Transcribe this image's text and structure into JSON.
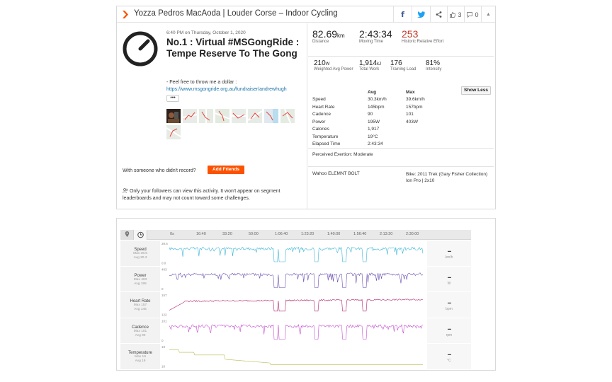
{
  "header": {
    "title": "Yozza Pedros MacAoda | Louder Corse – Indoor Cycling",
    "kudos_count": "3",
    "comment_count": "0",
    "colors": {
      "brand": "#fc5200",
      "facebook": "#3b5998",
      "twitter": "#1da1f2"
    }
  },
  "activity": {
    "date": "6:40 PM on Thursday, October 1, 2020",
    "title": "No.1 : Virtual #MSGongRide : Tempe Reserve To The Gong",
    "description_line1": "- Feel free to throw me a dollar :",
    "description_link": "https://www.msgongride.org.au/fundraiser/andrewhugh",
    "more_label": "•••",
    "friends_prompt": "With someone who didn't record?",
    "add_friends_label": "Add Friends",
    "privacy_note": "Only your followers can view this activity. It won't appear on segment leaderboards and may not count toward some challenges."
  },
  "summary": {
    "primary": [
      {
        "value": "82.69",
        "unit": "km",
        "label": "Distance"
      },
      {
        "value": "2:43:34",
        "unit": "",
        "label": "Moving Time"
      },
      {
        "value": "253",
        "unit": "",
        "label": "Historic Relative Effort"
      }
    ],
    "secondary": [
      {
        "value": "210",
        "unit": "W",
        "label": "Weighted Avg Power"
      },
      {
        "value": "1,914",
        "unit": "kJ",
        "label": "Total Work"
      },
      {
        "value": "176",
        "unit": "",
        "label": "Training Load"
      },
      {
        "value": "81%",
        "unit": "",
        "label": "Intensity"
      }
    ]
  },
  "details": {
    "show_less_label": "Show Less",
    "headers": [
      "",
      "Avg",
      "Max"
    ],
    "rows": [
      [
        "Speed",
        "30.3km/h",
        "39.6km/h"
      ],
      [
        "Heart Rate",
        "145bpm",
        "157bpm"
      ],
      [
        "Cadence",
        "90",
        "101"
      ],
      [
        "Power",
        "195W",
        "403W"
      ],
      [
        "Calories",
        "1,917",
        ""
      ],
      [
        "Temperature",
        "19°C",
        ""
      ],
      [
        "Elapsed Time",
        "2:43:34",
        ""
      ]
    ],
    "perceived_exertion": "Perceived Exertion: Moderate",
    "device": "Wahoo ELEMNT BOLT",
    "bike_line1": "Bike: 2011 Trek (Gary Fisher Collection)",
    "bike_line2": "Ion Pro | 2x10"
  },
  "analysis": {
    "time_ticks": [
      "0s",
      "16:40",
      "33:20",
      "50:00",
      "1:06:40",
      "1:23:20",
      "1:40:00",
      "1:56:40",
      "2:13:20",
      "2:30:00"
    ],
    "rows": [
      {
        "name": "Speed",
        "max": "Max 39.6",
        "avg": "Avg 30.3",
        "value": "--",
        "unit": "km/h",
        "axis_top": "39.6",
        "axis_bottom": "0.0",
        "color": "#3cb4d6"
      },
      {
        "name": "Power",
        "max": "Max 403",
        "avg": "Avg 195",
        "value": "--",
        "unit": "W",
        "axis_top": "403",
        "axis_bottom": "0",
        "color": "#6b4fb0"
      },
      {
        "name": "Heart Rate",
        "max": "Max 157",
        "avg": "Avg 145",
        "value": "--",
        "unit": "bpm",
        "axis_top": "157",
        "axis_bottom": "122",
        "color": "#b0246e"
      },
      {
        "name": "Cadence",
        "max": "Max 101",
        "avg": "Avg 90",
        "value": "--",
        "unit": "rpm",
        "axis_top": "101",
        "axis_bottom": "0",
        "color": "#c44fd0"
      },
      {
        "name": "Temperature",
        "max": "Max 19",
        "avg": "Avg 19",
        "value": "--",
        "unit": "°C",
        "axis_top": "19",
        "axis_bottom": "16",
        "color": "#b7bc4a"
      }
    ]
  }
}
